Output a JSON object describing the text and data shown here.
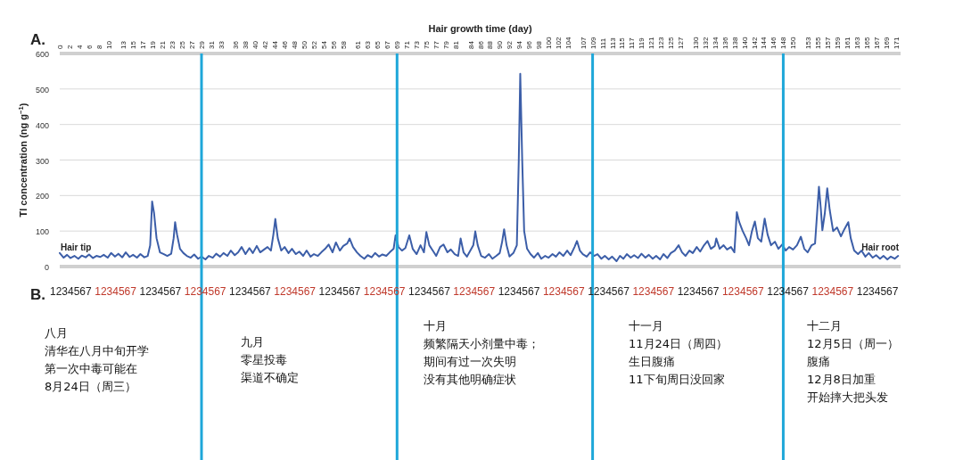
{
  "chart_data": {
    "type": "line",
    "xlabel": "Hair growth time (day)",
    "ylabel": "Tl concentration (ng g$^{−1}$)",
    "xlim": [
      0,
      172
    ],
    "ylim": [
      0,
      600
    ],
    "xticks": [
      0,
      2,
      4,
      6,
      8,
      10,
      13,
      15,
      17,
      19,
      21,
      23,
      25,
      27,
      29,
      31,
      33,
      36,
      38,
      40,
      42,
      44,
      46,
      48,
      50,
      52,
      54,
      56,
      58,
      61,
      63,
      65,
      67,
      69,
      71,
      73,
      75,
      77,
      79,
      81,
      84,
      86,
      88,
      90,
      92,
      94,
      96,
      98,
      100,
      102,
      104,
      107,
      109,
      111,
      113,
      115,
      117,
      119,
      121,
      123,
      125,
      127,
      130,
      132,
      134,
      136,
      138,
      140,
      142,
      144,
      146,
      148,
      150,
      153,
      155,
      157,
      159,
      161,
      163,
      165,
      167,
      169,
      171
    ],
    "yticks": [
      0,
      100,
      200,
      300,
      400,
      500,
      600
    ],
    "grid": "y",
    "series": [
      {
        "color": "#3c5ea8",
        "x": [
          0,
          0.8,
          1.5,
          2.2,
          3,
          3.8,
          4.5,
          5.3,
          6,
          6.8,
          7.5,
          8.3,
          9,
          9.8,
          10.5,
          11.3,
          12,
          12.8,
          13.5,
          14.3,
          15,
          15.8,
          16.5,
          17.3,
          18,
          18.5,
          18.9,
          19.3,
          19.8,
          20.5,
          21.3,
          22,
          22.8,
          23.3,
          23.6,
          24,
          24.6,
          25.3,
          26,
          26.8,
          27.5,
          28.3,
          29,
          29.8,
          30.5,
          31.3,
          32,
          32.8,
          33.5,
          34.3,
          35,
          35.8,
          36.5,
          37.2,
          38,
          38.8,
          39.5,
          40.3,
          41,
          41.8,
          42.5,
          43.2,
          43.7,
          44.1,
          44.6,
          45.3,
          46,
          46.8,
          47.5,
          48.3,
          49,
          49.8,
          50.5,
          51.3,
          52,
          52.8,
          53.5,
          54.3,
          55,
          55.8,
          56.5,
          57.3,
          58,
          58.8,
          59.3,
          60,
          60.8,
          61.5,
          62.3,
          63,
          63.8,
          64.5,
          65.3,
          66,
          66.8,
          67.5,
          68.3,
          68.7,
          69.3,
          70,
          70.7,
          71.5,
          72.2,
          73,
          73.8,
          74.5,
          75,
          75.6,
          76.3,
          77,
          77.8,
          78.5,
          79.3,
          80,
          80.8,
          81.5,
          82,
          82.6,
          83.3,
          84,
          84.6,
          85,
          85.5,
          86.2,
          87,
          87.8,
          88.5,
          89.3,
          90,
          90.5,
          90.9,
          91.4,
          92,
          92.8,
          93.5,
          93.9,
          94.2,
          94.6,
          95,
          95.6,
          96.3,
          97,
          97.8,
          98.5,
          99.3,
          100,
          100.8,
          101.5,
          102.2,
          103,
          103.8,
          104.5,
          105.3,
          105.8,
          106.4,
          107,
          107.8,
          108.5,
          109.3,
          110,
          110.8,
          111.5,
          112.3,
          113,
          113.9,
          114.6,
          115.3,
          116,
          116.8,
          117.5,
          118.3,
          119,
          119.8,
          120.5,
          121.3,
          122,
          122.8,
          123.5,
          124.3,
          125,
          125.8,
          126.6,
          127.3,
          128,
          128.8,
          129.5,
          130.3,
          131,
          131.8,
          132.5,
          133.2,
          134,
          134.3,
          135,
          135.8,
          136.5,
          137.3,
          138,
          138.5,
          139,
          139.7,
          140.4,
          141,
          141.6,
          142.2,
          142.8,
          143.5,
          144.2,
          144.8,
          145.5,
          146.3,
          147,
          147.8,
          148.5,
          149.2,
          150,
          150.8,
          151.6,
          152.3,
          153,
          153.8,
          154.5,
          155.3,
          155.7,
          156,
          156.5,
          157,
          157.5,
          158.2,
          159,
          159.8,
          160.5,
          161.3,
          161.8,
          162.5,
          163.3,
          164,
          164.8,
          165.5,
          166.3,
          167,
          167.8,
          168.5,
          169.3,
          170,
          170.8,
          171.5
        ],
        "values": [
          38,
          25,
          33,
          24,
          30,
          22,
          31,
          26,
          34,
          24,
          30,
          27,
          33,
          25,
          38,
          28,
          36,
          26,
          40,
          27,
          33,
          25,
          35,
          26,
          30,
          60,
          183,
          150,
          80,
          40,
          35,
          30,
          36,
          80,
          125,
          90,
          50,
          38,
          30,
          25,
          34,
          22,
          28,
          20,
          30,
          25,
          36,
          28,
          38,
          30,
          45,
          32,
          40,
          55,
          35,
          52,
          38,
          58,
          40,
          48,
          55,
          45,
          90,
          134,
          80,
          45,
          55,
          38,
          50,
          35,
          42,
          30,
          45,
          28,
          35,
          30,
          40,
          50,
          62,
          40,
          68,
          45,
          58,
          65,
          79,
          55,
          40,
          30,
          22,
          32,
          26,
          38,
          28,
          34,
          30,
          40,
          50,
          88,
          55,
          45,
          52,
          88,
          50,
          35,
          60,
          40,
          97,
          60,
          45,
          30,
          55,
          62,
          40,
          48,
          35,
          30,
          79,
          40,
          28,
          45,
          60,
          99,
          60,
          30,
          25,
          35,
          22,
          30,
          38,
          70,
          105,
          60,
          28,
          38,
          60,
          300,
          543,
          300,
          100,
          50,
          35,
          25,
          38,
          22,
          30,
          25,
          35,
          28,
          40,
          30,
          45,
          32,
          55,
          72,
          45,
          35,
          28,
          40,
          30,
          35,
          22,
          30,
          20,
          28,
          15,
          30,
          22,
          35,
          25,
          32,
          24,
          36,
          25,
          33,
          22,
          30,
          20,
          35,
          24,
          38,
          45,
          60,
          40,
          30,
          45,
          38,
          55,
          42,
          60,
          72,
          50,
          58,
          79,
          50,
          60,
          48,
          55,
          40,
          153,
          125,
          100,
          80,
          60,
          100,
          127,
          80,
          70,
          135,
          90,
          60,
          70,
          50,
          62,
          45,
          55,
          48,
          60,
          84,
          50,
          40,
          60,
          65,
          225,
          160,
          102,
          150,
          220,
          160,
          100,
          110,
          85,
          105,
          125,
          80,
          45,
          35,
          45,
          28,
          38,
          25,
          32,
          22,
          30,
          20,
          28,
          22,
          30
        ]
      }
    ],
    "ref_lines": [
      {
        "axis": "x",
        "value": 29,
        "color": "#1ea7d9"
      },
      {
        "axis": "x",
        "value": 69,
        "color": "#1ea7d9"
      },
      {
        "axis": "x",
        "value": 109,
        "color": "#1ea7d9"
      },
      {
        "axis": "x",
        "value": 148,
        "color": "#1ea7d9"
      }
    ],
    "annotations": [
      "Hair tip",
      "Hair root",
      "A.",
      "B.",
      "1234567",
      "1234567",
      "1234567",
      "1234567",
      "1234567",
      "1234567",
      "1234567",
      "1234567",
      "1234567",
      "1234567",
      "1234567",
      "1234567",
      "1234567",
      "1234567",
      "1234567",
      "1234567",
      "1234567",
      "1234567",
      "1234567",
      "八月",
      "清华在八月中旬开学",
      "第一次中毒可能在",
      "8月24日（周三）",
      "九月",
      "零星投毒",
      "渠道不确定",
      "十月",
      "频繁隔天小剂量中毒；",
      "期间有过一次失明",
      "没有其他明确症状",
      "十一月",
      "11月24日（周四）",
      "生日腹痛",
      "11下旬周日没回家",
      "十二月",
      "12月5日（周一）",
      "腹痛",
      "12月8日加重",
      "开始摔大把头发"
    ]
  }
}
